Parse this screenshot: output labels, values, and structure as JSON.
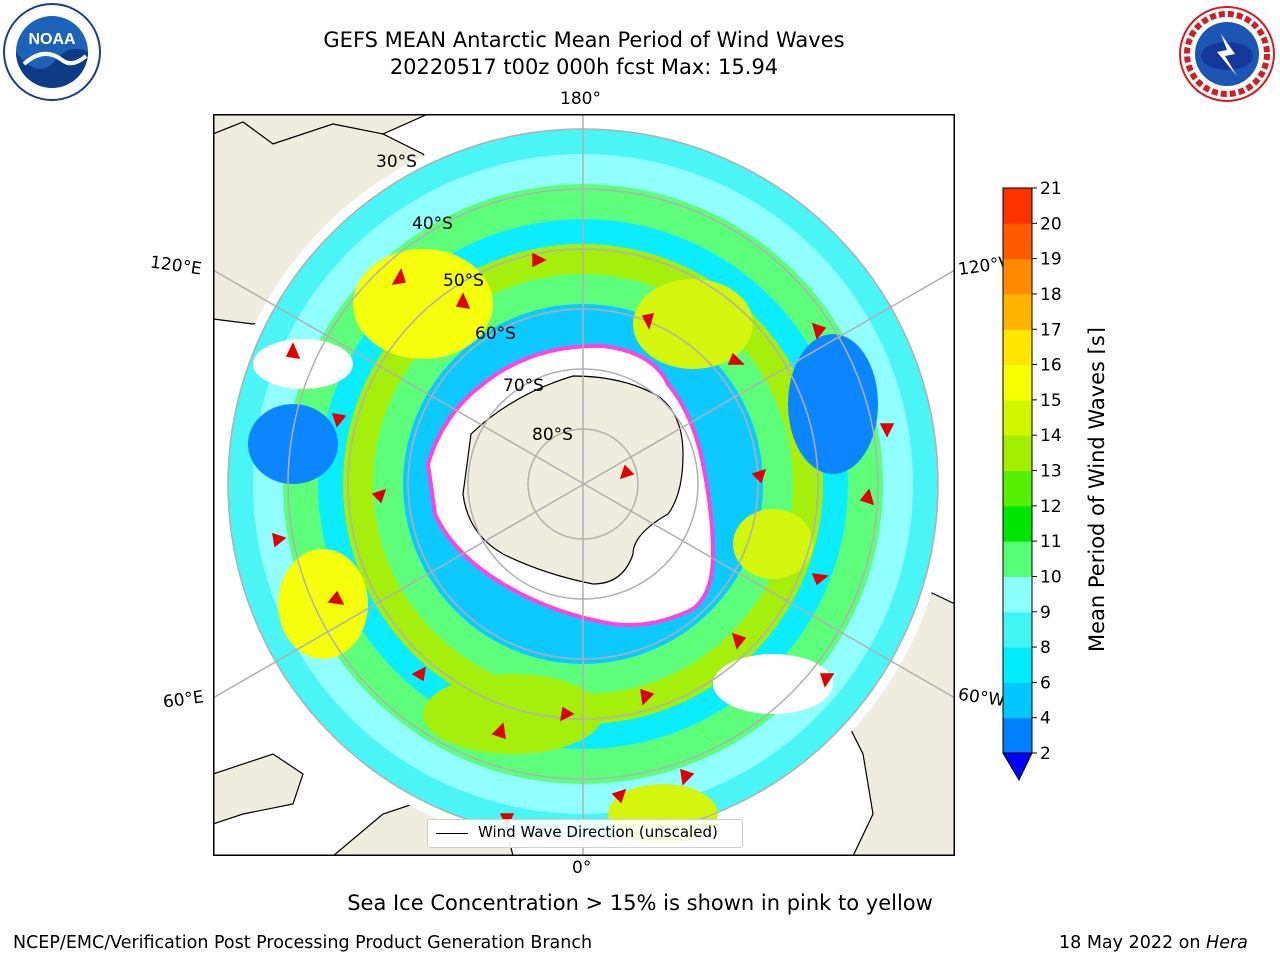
{
  "header": {
    "title_line_1": "GEFS MEAN Antarctic Mean Period of Wind Waves",
    "title_line_2": "20220517 t00z 000h fcst   Max: 15.94"
  },
  "logos": {
    "left": {
      "name": "noaa-logo",
      "text": "NOAA",
      "ring_text": "NATIONAL OCEANIC AND ATMOSPHERIC ADMINISTRATION · U.S. DEPARTMENT OF COMMERCE"
    },
    "right": {
      "name": "nws-logo",
      "ring_text": "NATIONAL WEATHER SERVICE"
    }
  },
  "map": {
    "projection": "south-polar-stereographic",
    "longitude_labels": {
      "top": "180°",
      "bottom": "0°",
      "upper_left": "120°E",
      "upper_right": "120°W",
      "lower_left": "60°E",
      "lower_right": "60°W"
    },
    "latitude_labels": [
      "30°S",
      "40°S",
      "50°S",
      "60°S",
      "70°S",
      "80°S"
    ],
    "legend": {
      "label": "Wind Wave Direction (unscaled)"
    }
  },
  "colorbar": {
    "label": "Mean Period of Wind Waves [s]",
    "ticks": [
      "2",
      "4",
      "6",
      "8",
      "9",
      "10",
      "11",
      "12",
      "13",
      "14",
      "15",
      "16",
      "17",
      "18",
      "19",
      "20",
      "21"
    ],
    "colors": [
      "#0080ff",
      "#00c8ff",
      "#00ecff",
      "#41f5f5",
      "#8cffff",
      "#55ff73",
      "#00e600",
      "#55ef00",
      "#a0f000",
      "#d2f500",
      "#f5ff00",
      "#ffe600",
      "#ffb400",
      "#ff8c00",
      "#ff5a00",
      "#ff3200"
    ],
    "under_color": "#0000ff",
    "over_color": "#ff0000"
  },
  "footer": {
    "sea_ice_note": "Sea Ice Concentration > 15% is shown in pink to yellow",
    "credit": "NCEP/EMC/Verification Post Processing Product Generation Branch",
    "date_prefix": "18 May 2022 on ",
    "date_machine": "Hera"
  },
  "palette": {
    "land": "#efeddd",
    "ice_edge": "#ff44dd",
    "arrow": "#e00000",
    "grid": "#b0b0b0"
  }
}
